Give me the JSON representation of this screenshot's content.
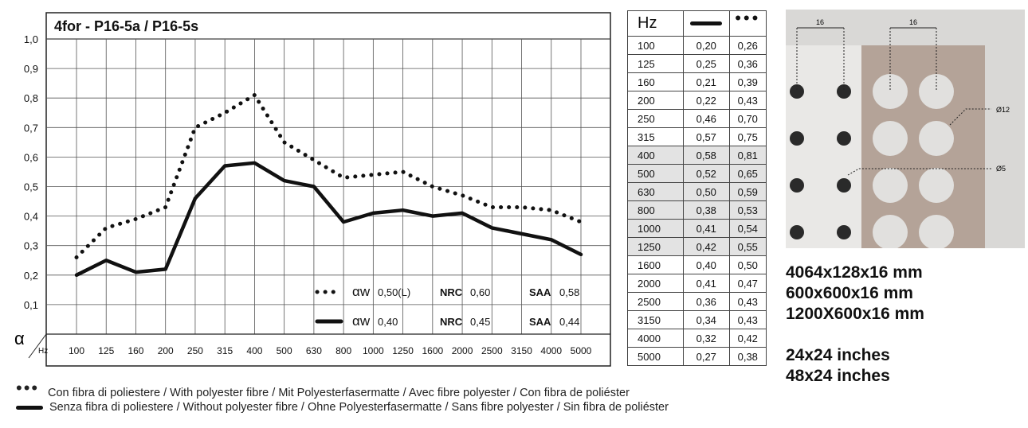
{
  "chart_data": {
    "type": "line",
    "title": "4for - P16-5a / P16-5s",
    "ylabel": "α",
    "xlabel": "Hz",
    "ylim": [
      0,
      1.0
    ],
    "y_ticks": [
      "1,0",
      "0,9",
      "0,8",
      "0,7",
      "0,6",
      "0,5",
      "0,4",
      "0,3",
      "0,2",
      "0,1"
    ],
    "categories": [
      "100",
      "125",
      "160",
      "200",
      "250",
      "315",
      "400",
      "500",
      "630",
      "800",
      "1000",
      "1250",
      "1600",
      "2000",
      "2500",
      "3150",
      "4000",
      "5000"
    ],
    "series": [
      {
        "style": "dotted",
        "values": [
          0.26,
          0.36,
          0.39,
          0.43,
          0.7,
          0.75,
          0.81,
          0.65,
          0.59,
          0.53,
          0.54,
          0.55,
          0.5,
          0.47,
          0.43,
          0.43,
          0.42,
          0.38
        ]
      },
      {
        "style": "solid",
        "values": [
          0.2,
          0.25,
          0.21,
          0.22,
          0.46,
          0.57,
          0.58,
          0.52,
          0.5,
          0.38,
          0.41,
          0.42,
          0.4,
          0.41,
          0.36,
          0.34,
          0.32,
          0.27
        ]
      }
    ],
    "legend": [
      {
        "style": "dotted",
        "aw_label": "αw",
        "aw_value": "0,50(L)",
        "nrc_label": "NRC",
        "nrc_value": "0,60",
        "saa_label": "SAA",
        "saa_value": "0,58"
      },
      {
        "style": "solid",
        "aGoogleAw_label": "αw",
        "aw_label": "αw",
        "aw_value": "0,40",
        "nrc_label": "NRC",
        "nrc_value": "0,45",
        "saa_label": "SAA",
        "saa_value": "0,44"
      }
    ],
    "grid": true
  },
  "table": {
    "header": "Hz",
    "highlight_rows": [
      6,
      7,
      8,
      9,
      10,
      11
    ],
    "rows": [
      [
        "100",
        "0,20",
        "0,26"
      ],
      [
        "125",
        "0,25",
        "0,36"
      ],
      [
        "160",
        "0,21",
        "0,39"
      ],
      [
        "200",
        "0,22",
        "0,43"
      ],
      [
        "250",
        "0,46",
        "0,70"
      ],
      [
        "315",
        "0,57",
        "0,75"
      ],
      [
        "400",
        "0,58",
        "0,81"
      ],
      [
        "500",
        "0,52",
        "0,65"
      ],
      [
        "630",
        "0,50",
        "0,59"
      ],
      [
        "800",
        "0,38",
        "0,53"
      ],
      [
        "1000",
        "0,41",
        "0,54"
      ],
      [
        "1250",
        "0,42",
        "0,55"
      ],
      [
        "1600",
        "0,40",
        "0,50"
      ],
      [
        "2000",
        "0,41",
        "0,47"
      ],
      [
        "2500",
        "0,36",
        "0,43"
      ],
      [
        "3150",
        "0,34",
        "0,43"
      ],
      [
        "4000",
        "0,32",
        "0,42"
      ],
      [
        "5000",
        "0,27",
        "0,38"
      ]
    ]
  },
  "perforation": {
    "dim_a": "16",
    "dim_b": "16",
    "hole_large": "Ø12",
    "hole_small": "Ø5",
    "colors": {
      "background": "#d9d8d6",
      "panel": "#b4a398",
      "hole_dark": "#2a2a2a",
      "hole_light": "#e1e0de",
      "light_zone": "#e9e8e6"
    }
  },
  "dimensions": [
    "4064x128x16 mm",
    "600x600x16 mm",
    "1200X600x16 mm"
  ],
  "dimensions_inches": [
    "24x24 inches",
    "48x24 inches"
  ],
  "bottom_legend": {
    "dotted": "Con fibra di poliestere / With polyester fibre / Mit Polyesterfasermatte / Avec fibre polyester / Con fibra de poliéster",
    "solid": "Senza fibra di poliestere / Without polyester fibre / Ohne Polyesterfasermatte / Sans fibre polyester / Sin fibra de poliéster"
  }
}
